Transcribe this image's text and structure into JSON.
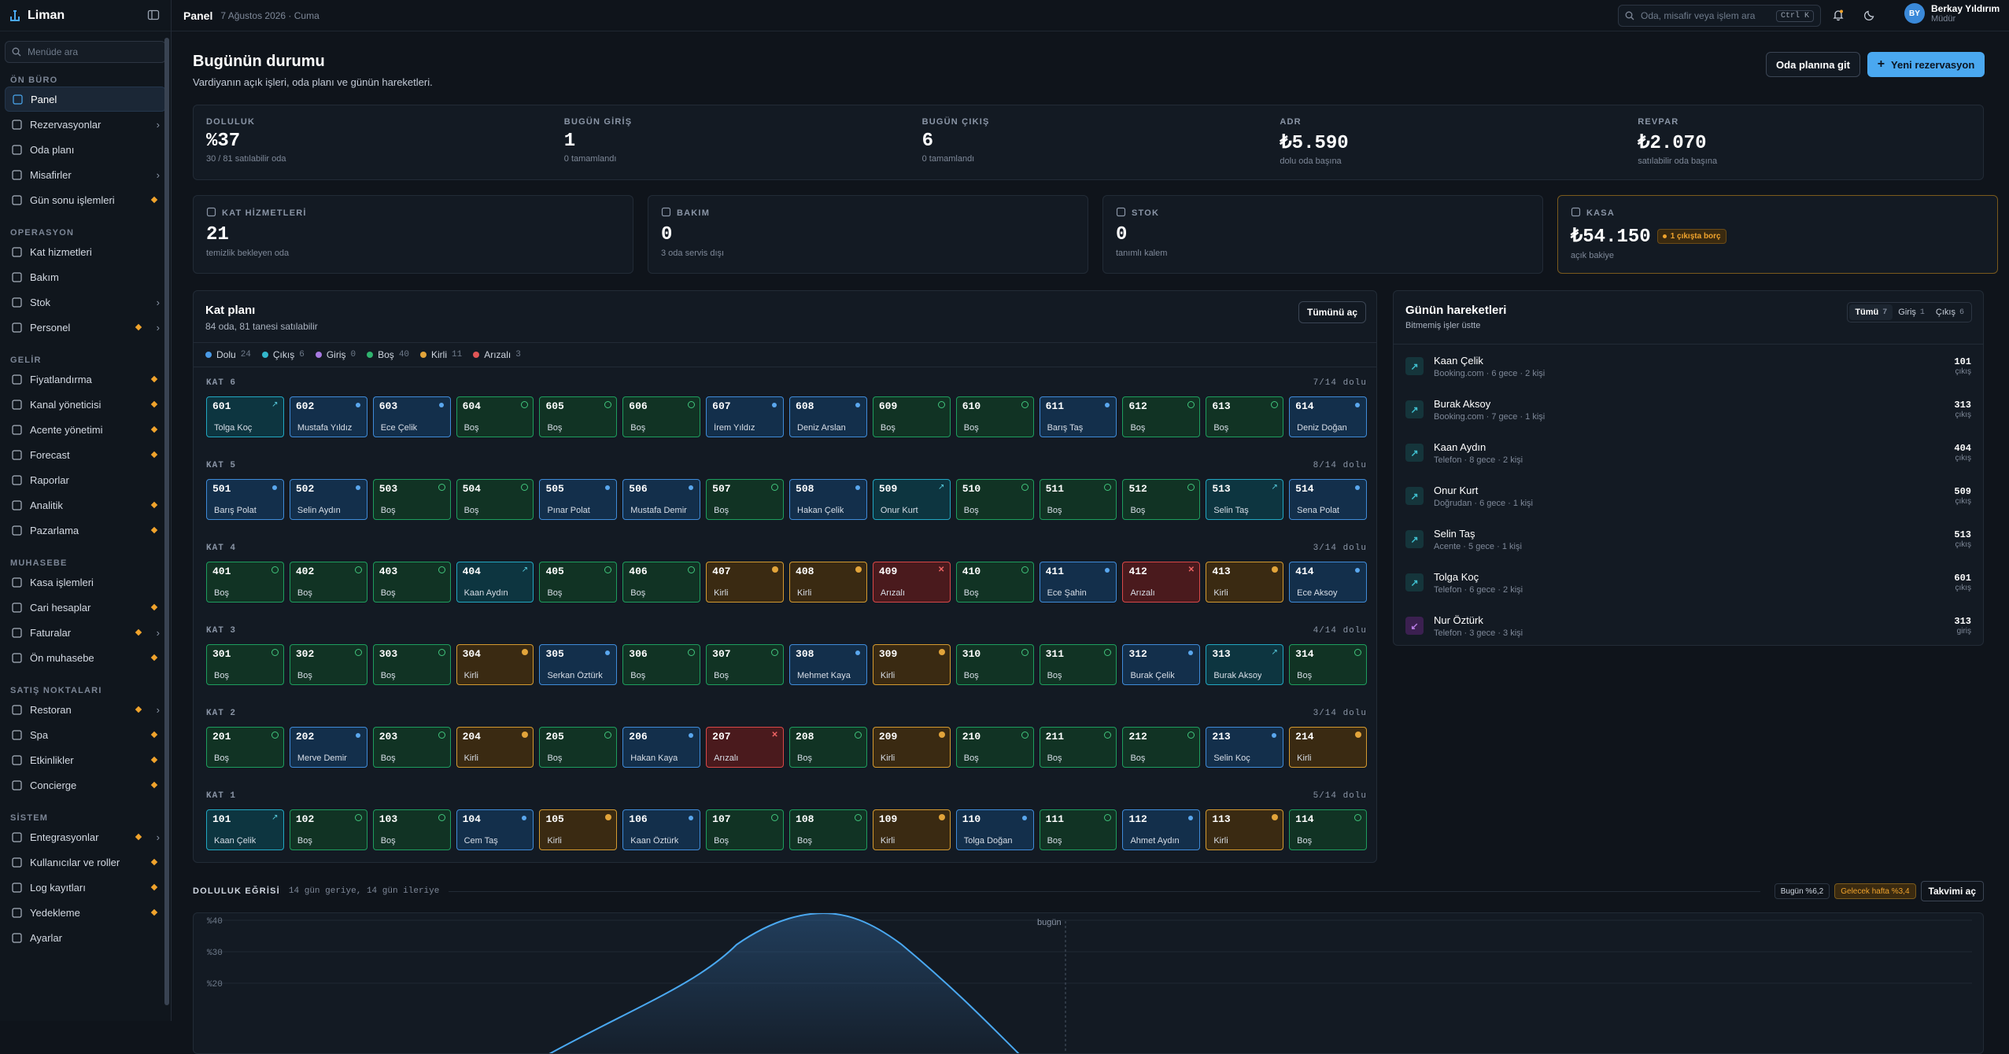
{
  "app": {
    "name": "Liman",
    "search_placeholder": "Menüde ara"
  },
  "sidebar": {
    "sections": [
      {
        "title": "ÖN BÜRO",
        "items": [
          {
            "label": "Panel",
            "active": true
          },
          {
            "label": "Rezervasyonlar",
            "chevron": true
          },
          {
            "label": "Oda planı"
          },
          {
            "label": "Misafirler",
            "chevron": true
          },
          {
            "label": "Gün sonu işlemleri",
            "dot": true
          }
        ]
      },
      {
        "title": "OPERASYON",
        "items": [
          {
            "label": "Kat hizmetleri"
          },
          {
            "label": "Bakım"
          },
          {
            "label": "Stok",
            "chevron": true
          },
          {
            "label": "Personel",
            "dot": true,
            "chevron": true
          }
        ]
      },
      {
        "title": "GELİR",
        "items": [
          {
            "label": "Fiyatlandırma",
            "dot": true
          },
          {
            "label": "Kanal yöneticisi",
            "dot": true
          },
          {
            "label": "Acente yönetimi",
            "dot": true
          },
          {
            "label": "Forecast",
            "dot": true
          },
          {
            "label": "Raporlar"
          },
          {
            "label": "Analitik",
            "dot": true
          },
          {
            "label": "Pazarlama",
            "dot": true
          }
        ]
      },
      {
        "title": "MUHASEBE",
        "items": [
          {
            "label": "Kasa işlemleri"
          },
          {
            "label": "Cari hesaplar",
            "dot": true
          },
          {
            "label": "Faturalar",
            "dot": true,
            "chevron": true
          },
          {
            "label": "Ön muhasebe",
            "dot": true
          }
        ]
      },
      {
        "title": "SATIŞ NOKTALARI",
        "items": [
          {
            "label": "Restoran",
            "dot": true,
            "chevron": true
          },
          {
            "label": "Spa",
            "dot": true
          },
          {
            "label": "Etkinlikler",
            "dot": true
          },
          {
            "label": "Concierge",
            "dot": true
          }
        ]
      },
      {
        "title": "SİSTEM",
        "items": [
          {
            "label": "Entegrasyonlar",
            "dot": true,
            "chevron": true
          },
          {
            "label": "Kullanıcılar ve roller",
            "dot": true
          },
          {
            "label": "Log kayıtları",
            "dot": true
          },
          {
            "label": "Yedekleme",
            "dot": true
          },
          {
            "label": "Ayarlar"
          }
        ]
      }
    ]
  },
  "topbar": {
    "title": "Panel",
    "date": "7 Ağustos 2026 · Cuma",
    "search_placeholder": "Oda, misafir veya işlem ara",
    "shortcut": "Ctrl K",
    "user_initials": "BY",
    "user_name": "Berkay Yıldırım",
    "user_role": "Müdür"
  },
  "page": {
    "title": "Bugünün durumu",
    "subtitle": "Vardiyanın açık işleri, oda planı ve günün hareketleri.",
    "btn_plan": "Oda planına git",
    "btn_new": "Yeni rezervasyon"
  },
  "kpis": [
    {
      "label": "DOLULUK",
      "value": "%37",
      "sub": "30 / 81 satılabilir oda"
    },
    {
      "label": "BUGÜN GİRİŞ",
      "value": "1",
      "sub": "0 tamamlandı"
    },
    {
      "label": "BUGÜN ÇIKIŞ",
      "value": "6",
      "sub": "0 tamamlandı"
    },
    {
      "label": "ADR",
      "value": "₺5.590",
      "sub": "dolu oda başına"
    },
    {
      "label": "REVPAR",
      "value": "₺2.070",
      "sub": "satılabilir oda başına"
    }
  ],
  "cards": [
    {
      "label": "KAT HİZMETLERİ",
      "value": "21",
      "sub": "temizlik bekleyen oda"
    },
    {
      "label": "BAKIM",
      "value": "0",
      "sub": "3 oda servis dışı"
    },
    {
      "label": "STOK",
      "value": "0",
      "sub": "tanımlı kalem"
    },
    {
      "label": "KASA",
      "value": "₺54.150",
      "sub": "açık bakiye",
      "badge": "1 çıkışta borç"
    }
  ],
  "plan": {
    "title": "Kat planı",
    "subtitle": "84 oda, 81 tanesi satılabilir",
    "btn": "Tümünü aç",
    "legend": [
      {
        "label": "Dolu",
        "count": "24",
        "color": "#4a9ae6"
      },
      {
        "label": "Çıkış",
        "count": "6",
        "color": "#33b7cc"
      },
      {
        "label": "Giriş",
        "count": "0",
        "color": "#a779e0"
      },
      {
        "label": "Boş",
        "count": "40",
        "color": "#2fb36e"
      },
      {
        "label": "Kirli",
        "count": "11",
        "color": "#e2a43a"
      },
      {
        "label": "Arızalı",
        "count": "3",
        "color": "#e05656"
      }
    ],
    "floors": [
      {
        "name": "KAT 6",
        "occ": "7/14 dolu",
        "rooms": [
          [
            "601",
            "cikis",
            "Tolga Koç"
          ],
          [
            "602",
            "dolu",
            "Mustafa Yıldız"
          ],
          [
            "603",
            "dolu",
            "Ece Çelik"
          ],
          [
            "604",
            "bos",
            "Boş"
          ],
          [
            "605",
            "bos",
            "Boş"
          ],
          [
            "606",
            "bos",
            "Boş"
          ],
          [
            "607",
            "dolu",
            "İrem Yıldız"
          ],
          [
            "608",
            "dolu",
            "Deniz Arslan"
          ],
          [
            "609",
            "bos",
            "Boş"
          ],
          [
            "610",
            "bos",
            "Boş"
          ],
          [
            "611",
            "dolu",
            "Barış Taş"
          ],
          [
            "612",
            "bos",
            "Boş"
          ],
          [
            "613",
            "bos",
            "Boş"
          ],
          [
            "614",
            "dolu",
            "Deniz Doğan"
          ]
        ]
      },
      {
        "name": "KAT 5",
        "occ": "8/14 dolu",
        "rooms": [
          [
            "501",
            "dolu",
            "Barış Polat"
          ],
          [
            "502",
            "dolu",
            "Selin Aydın"
          ],
          [
            "503",
            "bos",
            "Boş"
          ],
          [
            "504",
            "bos",
            "Boş"
          ],
          [
            "505",
            "dolu",
            "Pınar Polat"
          ],
          [
            "506",
            "dolu",
            "Mustafa Demir"
          ],
          [
            "507",
            "bos",
            "Boş"
          ],
          [
            "508",
            "dolu",
            "Hakan Çelik"
          ],
          [
            "509",
            "cikis",
            "Onur Kurt"
          ],
          [
            "510",
            "bos",
            "Boş"
          ],
          [
            "511",
            "bos",
            "Boş"
          ],
          [
            "512",
            "bos",
            "Boş"
          ],
          [
            "513",
            "cikis",
            "Selin Taş"
          ],
          [
            "514",
            "dolu",
            "Sena Polat"
          ]
        ]
      },
      {
        "name": "KAT 4",
        "occ": "3/14 dolu",
        "rooms": [
          [
            "401",
            "bos",
            "Boş"
          ],
          [
            "402",
            "bos",
            "Boş"
          ],
          [
            "403",
            "bos",
            "Boş"
          ],
          [
            "404",
            "cikis",
            "Kaan Aydın"
          ],
          [
            "405",
            "bos",
            "Boş"
          ],
          [
            "406",
            "bos",
            "Boş"
          ],
          [
            "407",
            "kirli",
            "Kirli"
          ],
          [
            "408",
            "kirli",
            "Kirli"
          ],
          [
            "409",
            "anz",
            "Arızalı"
          ],
          [
            "410",
            "bos",
            "Boş"
          ],
          [
            "411",
            "dolu",
            "Ece Şahin"
          ],
          [
            "412",
            "anz",
            "Arızalı"
          ],
          [
            "413",
            "kirli",
            "Kirli"
          ],
          [
            "414",
            "dolu",
            "Ece Aksoy"
          ]
        ]
      },
      {
        "name": "KAT 3",
        "occ": "4/14 dolu",
        "rooms": [
          [
            "301",
            "bos",
            "Boş"
          ],
          [
            "302",
            "bos",
            "Boş"
          ],
          [
            "303",
            "bos",
            "Boş"
          ],
          [
            "304",
            "kirli",
            "Kirli"
          ],
          [
            "305",
            "dolu",
            "Serkan Öztürk"
          ],
          [
            "306",
            "bos",
            "Boş"
          ],
          [
            "307",
            "bos",
            "Boş"
          ],
          [
            "308",
            "dolu",
            "Mehmet Kaya"
          ],
          [
            "309",
            "kirli",
            "Kirli"
          ],
          [
            "310",
            "bos",
            "Boş"
          ],
          [
            "311",
            "bos",
            "Boş"
          ],
          [
            "312",
            "dolu",
            "Burak Çelik"
          ],
          [
            "313",
            "cikis",
            "Burak Aksoy"
          ],
          [
            "314",
            "bos",
            "Boş"
          ]
        ]
      },
      {
        "name": "KAT 2",
        "occ": "3/14 dolu",
        "rooms": [
          [
            "201",
            "bos",
            "Boş"
          ],
          [
            "202",
            "dolu",
            "Merve Demir"
          ],
          [
            "203",
            "bos",
            "Boş"
          ],
          [
            "204",
            "kirli",
            "Kirli"
          ],
          [
            "205",
            "bos",
            "Boş"
          ],
          [
            "206",
            "dolu",
            "Hakan Kaya"
          ],
          [
            "207",
            "anz",
            "Arızalı"
          ],
          [
            "208",
            "bos",
            "Boş"
          ],
          [
            "209",
            "kirli",
            "Kirli"
          ],
          [
            "210",
            "bos",
            "Boş"
          ],
          [
            "211",
            "bos",
            "Boş"
          ],
          [
            "212",
            "bos",
            "Boş"
          ],
          [
            "213",
            "dolu",
            "Selin Koç"
          ],
          [
            "214",
            "kirli",
            "Kirli"
          ]
        ]
      },
      {
        "name": "KAT 1",
        "occ": "5/14 dolu",
        "rooms": [
          [
            "101",
            "cikis",
            "Kaan Çelik"
          ],
          [
            "102",
            "bos",
            "Boş"
          ],
          [
            "103",
            "bos",
            "Boş"
          ],
          [
            "104",
            "dolu",
            "Cem Taş"
          ],
          [
            "105",
            "kirli",
            "Kirli"
          ],
          [
            "106",
            "dolu",
            "Kaan Öztürk"
          ],
          [
            "107",
            "bos",
            "Boş"
          ],
          [
            "108",
            "bos",
            "Boş"
          ],
          [
            "109",
            "kirli",
            "Kirli"
          ],
          [
            "110",
            "dolu",
            "Tolga Doğan"
          ],
          [
            "111",
            "bos",
            "Boş"
          ],
          [
            "112",
            "dolu",
            "Ahmet Aydın"
          ],
          [
            "113",
            "kirli",
            "Kirli"
          ],
          [
            "114",
            "bos",
            "Boş"
          ]
        ]
      }
    ]
  },
  "moves": {
    "title": "Günün hareketleri",
    "subtitle": "Bitmemiş işler üstte",
    "tabs": [
      {
        "label": "Tümü",
        "count": "7"
      },
      {
        "label": "Giriş",
        "count": "1"
      },
      {
        "label": "Çıkış",
        "count": "6"
      }
    ],
    "items": [
      {
        "name": "Kaan Çelik",
        "detail": "Booking.com · 6 gece · 2 kişi",
        "room": "101",
        "type": "çıkış",
        "kind": "out"
      },
      {
        "name": "Burak Aksoy",
        "detail": "Booking.com · 7 gece · 1 kişi",
        "room": "313",
        "type": "çıkış",
        "kind": "out"
      },
      {
        "name": "Kaan Aydın",
        "detail": "Telefon · 8 gece · 2 kişi",
        "room": "404",
        "type": "çıkış",
        "kind": "out"
      },
      {
        "name": "Onur Kurt",
        "detail": "Doğrudan · 6 gece · 1 kişi",
        "room": "509",
        "type": "çıkış",
        "kind": "out"
      },
      {
        "name": "Selin Taş",
        "detail": "Acente · 5 gece · 1 kişi",
        "room": "513",
        "type": "çıkış",
        "kind": "out"
      },
      {
        "name": "Tolga Koç",
        "detail": "Telefon · 6 gece · 2 kişi",
        "room": "601",
        "type": "çıkış",
        "kind": "out"
      },
      {
        "name": "Nur Öztürk",
        "detail": "Telefon · 3 gece · 3 kişi",
        "room": "313",
        "type": "giriş",
        "kind": "in"
      }
    ]
  },
  "curve": {
    "title": "DOLULUK EĞRİSİ",
    "subtitle": "14 gün geriye, 14 gün ileriye",
    "today_pill": "Bugün %6,2",
    "week_pill": "Gelecek hafta %3,4",
    "btn": "Takvimi aç",
    "today_label": "bugün",
    "y_ticks": [
      "%40",
      "%30",
      "%20"
    ]
  }
}
